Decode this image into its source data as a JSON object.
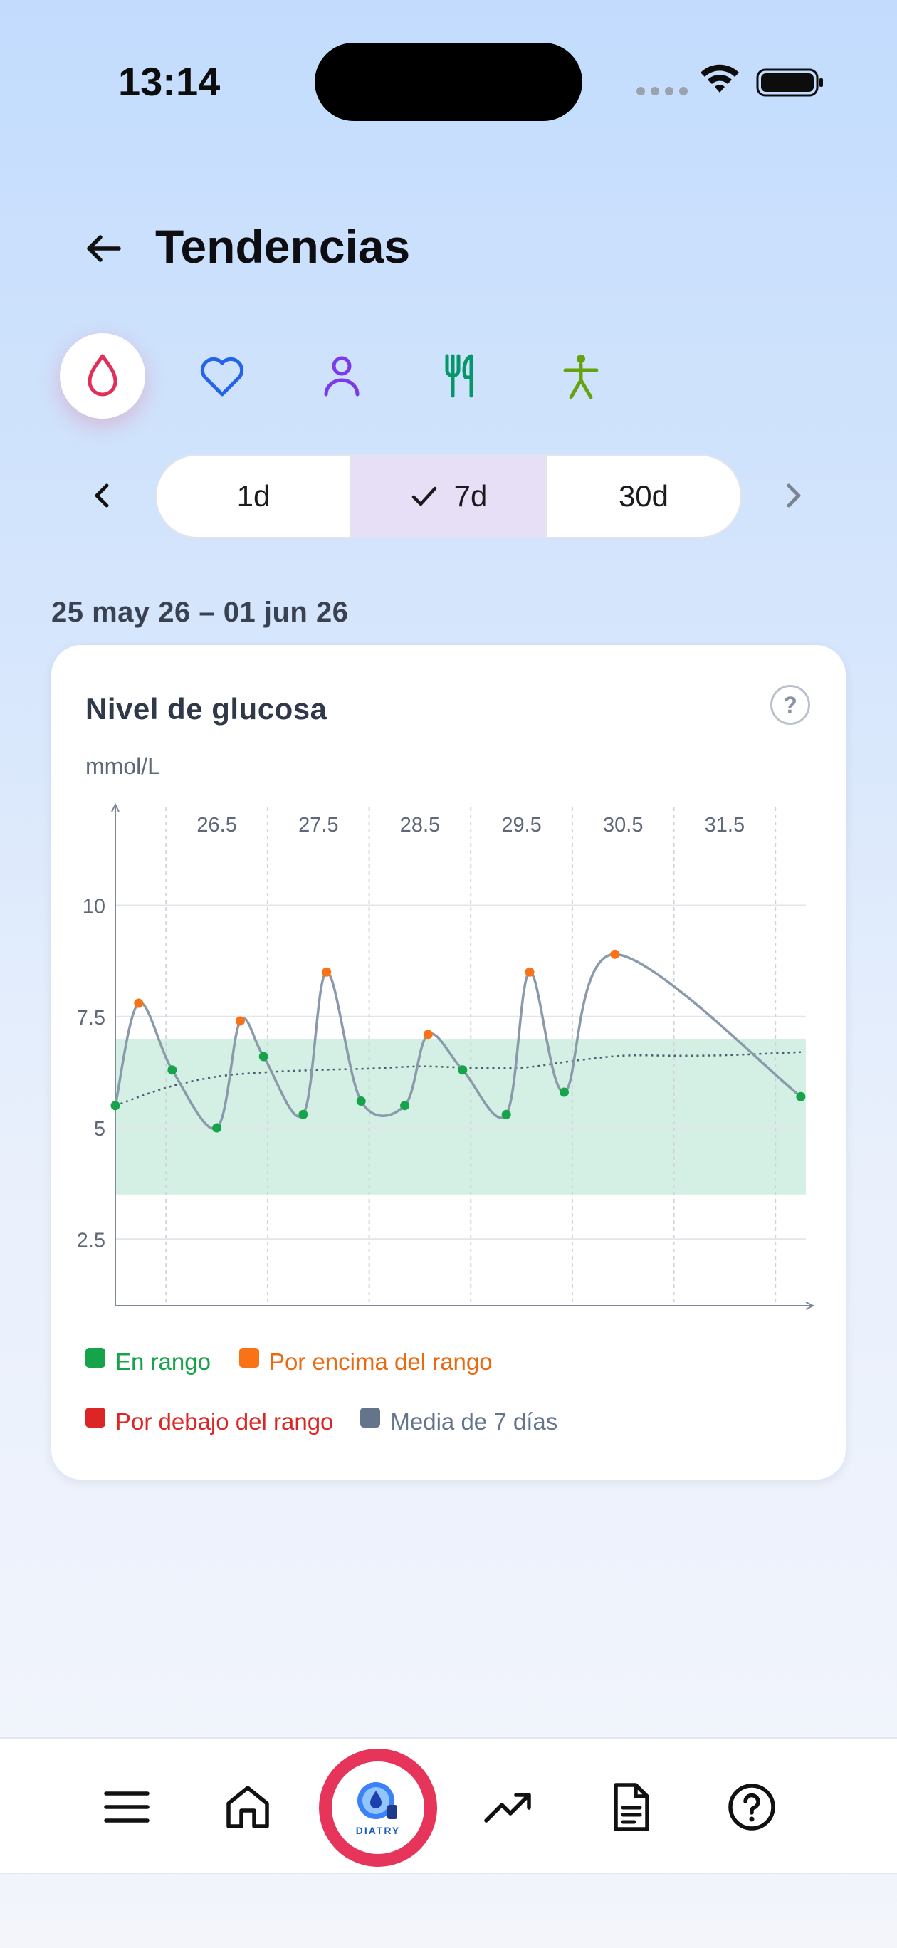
{
  "status_bar": {
    "time": "13:14"
  },
  "header": {
    "title": "Tendencias"
  },
  "categories": [
    {
      "name": "glucose",
      "icon": "blood-drop-icon",
      "color": "#e0305a",
      "active": true
    },
    {
      "name": "heart",
      "icon": "heart-icon",
      "color": "#2563eb",
      "active": false
    },
    {
      "name": "profile",
      "icon": "person-icon",
      "color": "#7c3aed",
      "active": false
    },
    {
      "name": "food",
      "icon": "fork-knife-icon",
      "color": "#059669",
      "active": false
    },
    {
      "name": "activity",
      "icon": "figure-icon",
      "color": "#65a30d",
      "active": false
    }
  ],
  "period": {
    "options": [
      "1d",
      "7d",
      "30d"
    ],
    "selected": "7d"
  },
  "date_range": "25 may 26 – 01 jun 26",
  "card": {
    "title": "Nivel de glucosa",
    "help": "?",
    "unit": "mmol/L"
  },
  "chart_data": {
    "type": "line",
    "title": "Nivel de glucosa",
    "ylabel": "mmol/L",
    "x_ticks": [
      "26.5",
      "27.5",
      "28.5",
      "29.5",
      "30.5",
      "31.5"
    ],
    "y_ticks": [
      "2.5",
      "5",
      "7.5",
      "10"
    ],
    "xlim": [
      25.5,
      32.3
    ],
    "ylim": [
      1.0,
      12.2
    ],
    "target_range": [
      3.5,
      7.0
    ],
    "grid": true,
    "series": [
      {
        "name": "Glucosa",
        "values": [
          {
            "x": 25.5,
            "y": 5.5
          },
          {
            "x": 25.73,
            "y": 7.8
          },
          {
            "x": 26.06,
            "y": 6.3
          },
          {
            "x": 26.5,
            "y": 5.0
          },
          {
            "x": 26.73,
            "y": 7.4
          },
          {
            "x": 26.96,
            "y": 6.6
          },
          {
            "x": 27.35,
            "y": 5.3
          },
          {
            "x": 27.58,
            "y": 8.5
          },
          {
            "x": 27.92,
            "y": 5.6
          },
          {
            "x": 28.35,
            "y": 5.5
          },
          {
            "x": 28.58,
            "y": 7.1
          },
          {
            "x": 28.92,
            "y": 6.3
          },
          {
            "x": 29.35,
            "y": 5.3
          },
          {
            "x": 29.58,
            "y": 8.5
          },
          {
            "x": 29.92,
            "y": 5.8
          },
          {
            "x": 30.42,
            "y": 8.9
          },
          {
            "x": 32.25,
            "y": 5.7
          }
        ]
      },
      {
        "name": "Media de 7 días",
        "values": [
          {
            "x": 25.5,
            "y": 5.5
          },
          {
            "x": 26.0,
            "y": 5.9
          },
          {
            "x": 26.5,
            "y": 6.15
          },
          {
            "x": 27.0,
            "y": 6.25
          },
          {
            "x": 27.5,
            "y": 6.3
          },
          {
            "x": 28.0,
            "y": 6.33
          },
          {
            "x": 28.5,
            "y": 6.38
          },
          {
            "x": 29.0,
            "y": 6.35
          },
          {
            "x": 29.5,
            "y": 6.35
          },
          {
            "x": 30.0,
            "y": 6.5
          },
          {
            "x": 30.5,
            "y": 6.62
          },
          {
            "x": 31.0,
            "y": 6.62
          },
          {
            "x": 31.5,
            "y": 6.63
          },
          {
            "x": 32.25,
            "y": 6.7
          }
        ]
      }
    ],
    "legend": [
      {
        "label": "En rango",
        "color": "#16a34a"
      },
      {
        "label": "Por encima del rango",
        "color": "#f97316"
      },
      {
        "label": "Por debajo del rango",
        "color": "#dc2626"
      },
      {
        "label": "Media de 7 días",
        "color": "#64748b"
      }
    ]
  },
  "bottom_nav": [
    {
      "name": "menu",
      "icon": "hamburger-menu-icon"
    },
    {
      "name": "home",
      "icon": "home-icon"
    },
    {
      "name": "diatry",
      "icon": "diatry-logo-icon",
      "label": "DIATRY"
    },
    {
      "name": "trends",
      "icon": "trending-up-icon"
    },
    {
      "name": "document",
      "icon": "document-icon"
    },
    {
      "name": "help",
      "icon": "question-circle-icon"
    }
  ]
}
